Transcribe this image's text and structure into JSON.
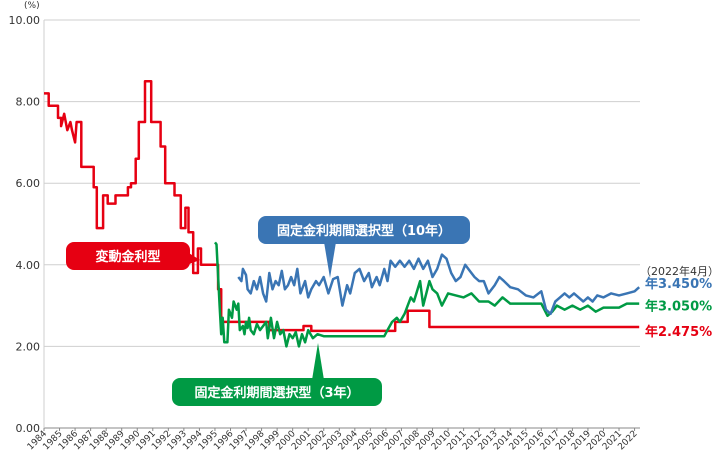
{
  "chart_data": {
    "type": "line",
    "y_unit": "(%)",
    "ylim": [
      0,
      10
    ],
    "y_ticks": [
      "0.00",
      "2.00",
      "4.00",
      "6.00",
      "8.00",
      "10.00"
    ],
    "x_ticks": [
      "1984",
      "1985",
      "1986",
      "1987",
      "1988",
      "1989",
      "1990",
      "1991",
      "1992",
      "1993",
      "1994",
      "1995",
      "1996",
      "1997",
      "1998",
      "1999",
      "2000",
      "2001",
      "2002",
      "2003",
      "2004",
      "2005",
      "2006",
      "2007",
      "2008",
      "2009",
      "2010",
      "2011",
      "2012",
      "2013",
      "2014",
      "2015",
      "2016",
      "2017",
      "2018",
      "2019",
      "2020",
      "2021",
      "2022"
    ],
    "grid": "horizontal",
    "date_note": "（2022年4月）",
    "series": [
      {
        "name": "変動金利型",
        "color": "#e60012",
        "end_label": "年2.475%",
        "points": [
          [
            1984.0,
            8.2
          ],
          [
            1984.3,
            8.2
          ],
          [
            1984.3,
            7.9
          ],
          [
            1984.9,
            7.9
          ],
          [
            1984.9,
            7.6
          ],
          [
            1985.1,
            7.6
          ],
          [
            1985.1,
            7.4
          ],
          [
            1985.3,
            7.7
          ],
          [
            1985.5,
            7.3
          ],
          [
            1985.7,
            7.5
          ],
          [
            1985.8,
            7.3
          ],
          [
            1986.0,
            7.0
          ],
          [
            1986.1,
            7.5
          ],
          [
            1986.4,
            7.5
          ],
          [
            1986.4,
            6.4
          ],
          [
            1987.2,
            6.4
          ],
          [
            1987.2,
            5.9
          ],
          [
            1987.4,
            5.9
          ],
          [
            1987.4,
            4.9
          ],
          [
            1987.8,
            4.9
          ],
          [
            1987.8,
            5.7
          ],
          [
            1988.1,
            5.7
          ],
          [
            1988.1,
            5.5
          ],
          [
            1988.6,
            5.5
          ],
          [
            1988.6,
            5.7
          ],
          [
            1989.4,
            5.7
          ],
          [
            1989.4,
            5.9
          ],
          [
            1989.6,
            5.9
          ],
          [
            1989.6,
            6.0
          ],
          [
            1989.9,
            6.0
          ],
          [
            1989.9,
            6.6
          ],
          [
            1990.1,
            6.6
          ],
          [
            1990.1,
            7.5
          ],
          [
            1990.5,
            7.5
          ],
          [
            1990.5,
            8.5
          ],
          [
            1990.9,
            8.5
          ],
          [
            1990.9,
            7.5
          ],
          [
            1991.5,
            7.5
          ],
          [
            1991.5,
            6.9
          ],
          [
            1991.8,
            6.9
          ],
          [
            1991.8,
            6.0
          ],
          [
            1992.4,
            6.0
          ],
          [
            1992.4,
            5.7
          ],
          [
            1992.8,
            5.7
          ],
          [
            1992.8,
            4.9
          ],
          [
            1993.1,
            4.9
          ],
          [
            1993.1,
            5.4
          ],
          [
            1993.3,
            5.4
          ],
          [
            1993.3,
            4.8
          ],
          [
            1993.6,
            4.8
          ],
          [
            1993.6,
            3.8
          ],
          [
            1993.9,
            3.8
          ],
          [
            1993.9,
            4.4
          ],
          [
            1994.1,
            4.4
          ],
          [
            1994.1,
            4.0
          ],
          [
            1995.2,
            4.0
          ],
          [
            1995.2,
            3.4
          ],
          [
            1995.4,
            3.4
          ],
          [
            1995.4,
            2.6
          ],
          [
            1998.5,
            2.6
          ],
          [
            1998.5,
            2.4
          ],
          [
            2000.7,
            2.4
          ],
          [
            2000.7,
            2.5
          ],
          [
            2001.2,
            2.5
          ],
          [
            2001.2,
            2.38
          ],
          [
            2006.6,
            2.38
          ],
          [
            2006.6,
            2.6
          ],
          [
            2007.4,
            2.6
          ],
          [
            2007.4,
            2.875
          ],
          [
            2008.8,
            2.875
          ],
          [
            2008.8,
            2.475
          ],
          [
            2022.3,
            2.475
          ]
        ]
      },
      {
        "name": "固定金利期間選択型（3年）",
        "color": "#009a44",
        "end_label": "年3.050%",
        "points": [
          [
            1995.0,
            4.55
          ],
          [
            1995.1,
            4.5
          ],
          [
            1995.3,
            3.0
          ],
          [
            1995.4,
            2.3
          ],
          [
            1995.5,
            2.7
          ],
          [
            1995.6,
            2.1
          ],
          [
            1995.8,
            2.1
          ],
          [
            1995.9,
            2.9
          ],
          [
            1996.1,
            2.7
          ],
          [
            1996.2,
            3.1
          ],
          [
            1996.4,
            2.9
          ],
          [
            1996.5,
            3.05
          ],
          [
            1996.6,
            2.4
          ],
          [
            1996.8,
            2.5
          ],
          [
            1996.9,
            2.3
          ],
          [
            1997.0,
            2.6
          ],
          [
            1997.1,
            2.45
          ],
          [
            1997.2,
            2.7
          ],
          [
            1997.3,
            2.4
          ],
          [
            1997.5,
            2.3
          ],
          [
            1997.7,
            2.55
          ],
          [
            1997.9,
            2.4
          ],
          [
            1998.1,
            2.5
          ],
          [
            1998.3,
            2.6
          ],
          [
            1998.4,
            2.2
          ],
          [
            1998.6,
            2.7
          ],
          [
            1998.8,
            2.2
          ],
          [
            1999.0,
            2.6
          ],
          [
            1999.2,
            2.3
          ],
          [
            1999.4,
            2.4
          ],
          [
            1999.6,
            2.0
          ],
          [
            1999.8,
            2.3
          ],
          [
            2000.0,
            2.2
          ],
          [
            2000.2,
            2.35
          ],
          [
            2000.4,
            2.0
          ],
          [
            2000.6,
            2.3
          ],
          [
            2000.8,
            2.1
          ],
          [
            2001.0,
            2.4
          ],
          [
            2001.3,
            2.2
          ],
          [
            2001.6,
            2.3
          ],
          [
            2002.0,
            2.25
          ],
          [
            2005.9,
            2.25
          ],
          [
            2006.1,
            2.4
          ],
          [
            2006.4,
            2.6
          ],
          [
            2006.7,
            2.7
          ],
          [
            2006.9,
            2.6
          ],
          [
            2007.2,
            2.8
          ],
          [
            2007.4,
            3.0
          ],
          [
            2007.6,
            3.2
          ],
          [
            2007.8,
            3.1
          ],
          [
            2008.0,
            3.35
          ],
          [
            2008.2,
            3.6
          ],
          [
            2008.4,
            3.0
          ],
          [
            2008.6,
            3.3
          ],
          [
            2008.8,
            3.6
          ],
          [
            2009.0,
            3.4
          ],
          [
            2009.3,
            3.3
          ],
          [
            2009.6,
            3.0
          ],
          [
            2010.0,
            3.3
          ],
          [
            2010.5,
            3.25
          ],
          [
            2011.0,
            3.2
          ],
          [
            2011.5,
            3.3
          ],
          [
            2012.0,
            3.1
          ],
          [
            2012.6,
            3.1
          ],
          [
            2013.0,
            3.0
          ],
          [
            2013.5,
            3.2
          ],
          [
            2014.0,
            3.05
          ],
          [
            2016.0,
            3.05
          ],
          [
            2016.4,
            2.75
          ],
          [
            2016.7,
            2.85
          ],
          [
            2017.0,
            3.0
          ],
          [
            2017.5,
            2.9
          ],
          [
            2018.0,
            3.0
          ],
          [
            2018.5,
            2.9
          ],
          [
            2019.0,
            3.0
          ],
          [
            2019.5,
            2.85
          ],
          [
            2020.0,
            2.95
          ],
          [
            2021.0,
            2.95
          ],
          [
            2021.5,
            3.05
          ],
          [
            2022.3,
            3.05
          ]
        ]
      },
      {
        "name": "固定金利期間選択型（10年）",
        "color": "#3a75b4",
        "end_label": "年3.450%",
        "points": [
          [
            1996.5,
            3.7
          ],
          [
            1996.7,
            3.6
          ],
          [
            1996.8,
            3.9
          ],
          [
            1997.0,
            3.75
          ],
          [
            1997.1,
            3.4
          ],
          [
            1997.3,
            3.3
          ],
          [
            1997.5,
            3.6
          ],
          [
            1997.7,
            3.4
          ],
          [
            1997.9,
            3.7
          ],
          [
            1998.1,
            3.3
          ],
          [
            1998.3,
            3.1
          ],
          [
            1998.5,
            3.8
          ],
          [
            1998.7,
            3.4
          ],
          [
            1998.9,
            3.6
          ],
          [
            1999.1,
            3.5
          ],
          [
            1999.3,
            3.85
          ],
          [
            1999.5,
            3.4
          ],
          [
            1999.7,
            3.5
          ],
          [
            1999.9,
            3.7
          ],
          [
            2000.1,
            3.5
          ],
          [
            2000.3,
            3.9
          ],
          [
            2000.5,
            3.3
          ],
          [
            2000.8,
            3.6
          ],
          [
            2001.0,
            3.2
          ],
          [
            2001.2,
            3.4
          ],
          [
            2001.5,
            3.6
          ],
          [
            2001.7,
            3.5
          ],
          [
            2002.0,
            3.7
          ],
          [
            2002.3,
            3.3
          ],
          [
            2002.6,
            3.65
          ],
          [
            2002.9,
            3.7
          ],
          [
            2003.2,
            3.0
          ],
          [
            2003.5,
            3.5
          ],
          [
            2003.7,
            3.3
          ],
          [
            2004.0,
            3.8
          ],
          [
            2004.3,
            3.9
          ],
          [
            2004.6,
            3.6
          ],
          [
            2004.9,
            3.8
          ],
          [
            2005.1,
            3.45
          ],
          [
            2005.4,
            3.7
          ],
          [
            2005.6,
            3.5
          ],
          [
            2005.9,
            3.9
          ],
          [
            2006.1,
            3.6
          ],
          [
            2006.3,
            4.1
          ],
          [
            2006.6,
            3.95
          ],
          [
            2006.9,
            4.1
          ],
          [
            2007.2,
            3.95
          ],
          [
            2007.5,
            4.1
          ],
          [
            2007.8,
            3.9
          ],
          [
            2008.1,
            4.15
          ],
          [
            2008.4,
            3.9
          ],
          [
            2008.7,
            4.1
          ],
          [
            2009.0,
            3.7
          ],
          [
            2009.3,
            3.9
          ],
          [
            2009.6,
            4.25
          ],
          [
            2009.9,
            4.15
          ],
          [
            2010.2,
            3.8
          ],
          [
            2010.5,
            3.6
          ],
          [
            2010.8,
            3.7
          ],
          [
            2011.1,
            4.0
          ],
          [
            2011.4,
            3.85
          ],
          [
            2011.7,
            3.7
          ],
          [
            2012.0,
            3.6
          ],
          [
            2012.3,
            3.6
          ],
          [
            2012.6,
            3.3
          ],
          [
            2013.0,
            3.5
          ],
          [
            2013.3,
            3.7
          ],
          [
            2013.6,
            3.6
          ],
          [
            2014.0,
            3.45
          ],
          [
            2014.5,
            3.4
          ],
          [
            2015.0,
            3.25
          ],
          [
            2015.5,
            3.2
          ],
          [
            2016.0,
            3.35
          ],
          [
            2016.3,
            2.9
          ],
          [
            2016.6,
            2.8
          ],
          [
            2016.9,
            3.1
          ],
          [
            2017.2,
            3.2
          ],
          [
            2017.5,
            3.3
          ],
          [
            2017.8,
            3.2
          ],
          [
            2018.1,
            3.3
          ],
          [
            2018.4,
            3.2
          ],
          [
            2018.7,
            3.1
          ],
          [
            2019.0,
            3.2
          ],
          [
            2019.3,
            3.1
          ],
          [
            2019.6,
            3.25
          ],
          [
            2020.0,
            3.2
          ],
          [
            2020.5,
            3.3
          ],
          [
            2021.0,
            3.25
          ],
          [
            2021.5,
            3.3
          ],
          [
            2022.0,
            3.35
          ],
          [
            2022.3,
            3.45
          ]
        ]
      }
    ],
    "callouts": [
      {
        "series": "変動金利型",
        "text": "変動金利型",
        "color": "#e60012"
      },
      {
        "series": "固定金利期間選択型（10年）",
        "text": "固定金利期間選択型（10年）",
        "color": "#3a75b4"
      },
      {
        "series": "固定金利期間選択型（3年）",
        "text": "固定金利期間選択型（3年）",
        "color": "#009a44"
      }
    ]
  }
}
